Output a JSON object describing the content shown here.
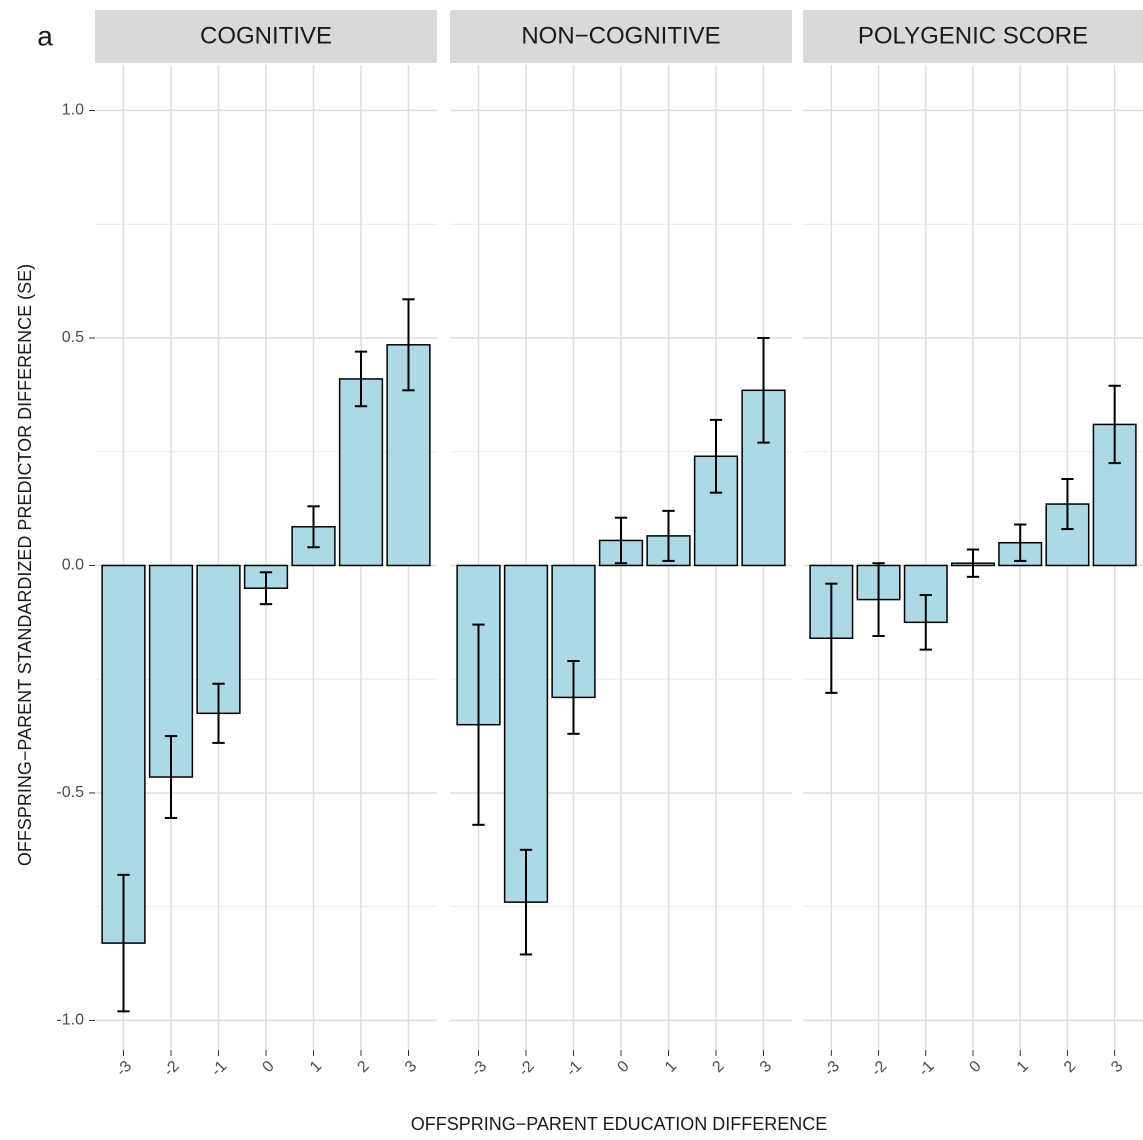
{
  "chart_data": {
    "type": "bar",
    "panel_label": "a",
    "y_label": "OFFSPRING−PARENT STANDARDIZED PREDICTOR DIFFERENCE (SE)",
    "x_label": "OFFSPRING−PARENT EDUCATION DIFFERENCE",
    "categories": [
      "-3",
      "-2",
      "-1",
      "0",
      "1",
      "2",
      "3"
    ],
    "ylim": [
      -1.065,
      1.1
    ],
    "yticks": [
      {
        "value": -1,
        "label": "-1.0"
      },
      {
        "value": -0.5,
        "label": "-0.5"
      },
      {
        "value": 0,
        "label": "0.0"
      },
      {
        "value": 0.5,
        "label": "0.5"
      },
      {
        "value": 1,
        "label": "1.0"
      }
    ],
    "grid": true,
    "color": "#add8e6",
    "facets": [
      {
        "title": "COGNITIVE",
        "values": [
          -0.83,
          -0.465,
          -0.325,
          -0.05,
          0.085,
          0.41,
          0.485
        ],
        "errors": [
          0.15,
          0.09,
          0.065,
          0.035,
          0.045,
          0.06,
          0.1
        ]
      },
      {
        "title": "NON−COGNITIVE",
        "values": [
          -0.35,
          -0.74,
          -0.29,
          0.055,
          0.065,
          0.24,
          0.385
        ],
        "errors": [
          0.22,
          0.115,
          0.08,
          0.05,
          0.055,
          0.08,
          0.115
        ]
      },
      {
        "title": "POLYGENIC SCORE",
        "values": [
          -0.16,
          -0.075,
          -0.125,
          0.005,
          0.05,
          0.135,
          0.31
        ],
        "errors": [
          0.12,
          0.08,
          0.06,
          0.03,
          0.04,
          0.055,
          0.085
        ]
      }
    ]
  }
}
